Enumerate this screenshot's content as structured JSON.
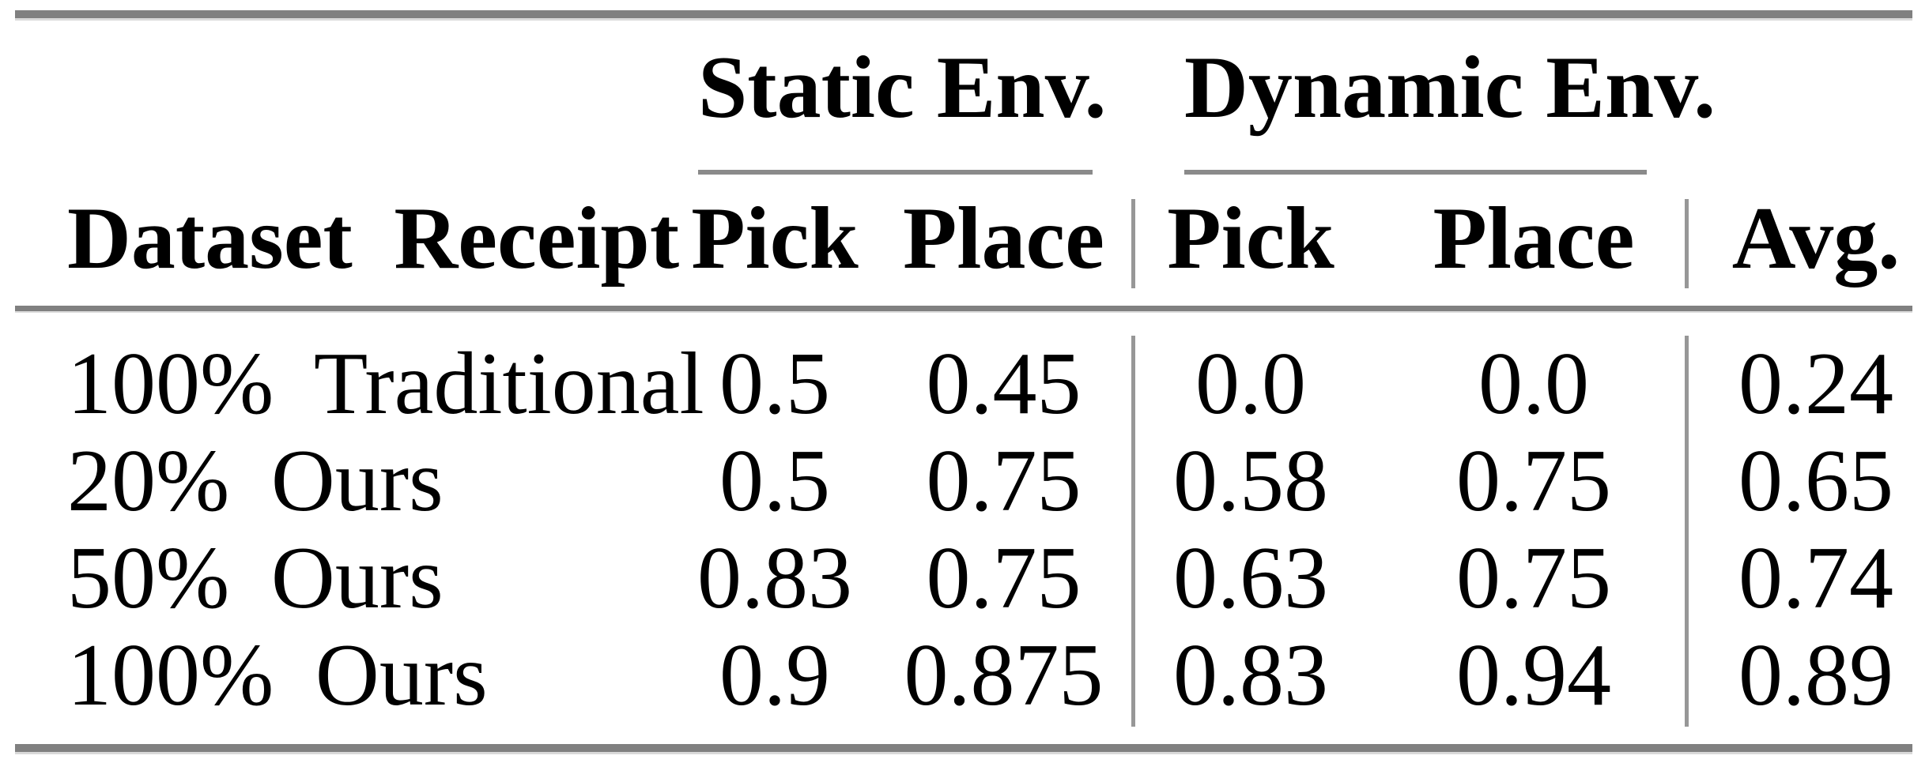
{
  "table": {
    "groups": {
      "static": "Static Env.",
      "dynamic": "Dynamic Env."
    },
    "columns": {
      "dataset": "Dataset Receipt",
      "static_pick": "Pick",
      "static_place": "Place",
      "dynamic_pick": "Pick",
      "dynamic_place": "Place",
      "avg": "Avg."
    },
    "rows": [
      {
        "label": "100% Traditional",
        "static_pick": "0.5",
        "static_place": "0.45",
        "dynamic_pick": "0.0",
        "dynamic_place": "0.0",
        "avg": "0.24"
      },
      {
        "label": "20% Ours",
        "static_pick": "0.5",
        "static_place": "0.75",
        "dynamic_pick": "0.58",
        "dynamic_place": "0.75",
        "avg": "0.65"
      },
      {
        "label": "50% Ours",
        "static_pick": "0.83",
        "static_place": "0.75",
        "dynamic_pick": "0.63",
        "dynamic_place": "0.75",
        "avg": "0.74"
      },
      {
        "label": "100% Ours",
        "static_pick": "0.9",
        "static_place": "0.875",
        "dynamic_pick": "0.83",
        "dynamic_place": "0.94",
        "avg": "0.89"
      }
    ],
    "colors": {
      "rule_heavy": "#808080",
      "rule_mid": "#8a8a8a",
      "rule_vertical": "#979797",
      "text": "#000000",
      "background": "#ffffff"
    }
  },
  "chart_data": {
    "type": "table",
    "title": "",
    "column_groups": [
      {
        "label": "",
        "span": 1
      },
      {
        "label": "Static Env.",
        "span": 2
      },
      {
        "label": "Dynamic Env.",
        "span": 2
      },
      {
        "label": "",
        "span": 1
      }
    ],
    "columns": [
      "Dataset Receipt",
      "Pick",
      "Place",
      "Pick",
      "Place",
      "Avg."
    ],
    "rows": [
      [
        "100% Traditional",
        0.5,
        0.45,
        0.0,
        0.0,
        0.24
      ],
      [
        "20% Ours",
        0.5,
        0.75,
        0.58,
        0.75,
        0.65
      ],
      [
        "50% Ours",
        0.83,
        0.75,
        0.63,
        0.75,
        0.74
      ],
      [
        "100% Ours",
        0.9,
        0.875,
        0.83,
        0.94,
        0.89
      ]
    ],
    "layout_hints": {
      "grid": "booktabs-style horizontal rules, vertical rules between column groups",
      "alignment": "first column left-aligned, numeric columns centered"
    }
  }
}
